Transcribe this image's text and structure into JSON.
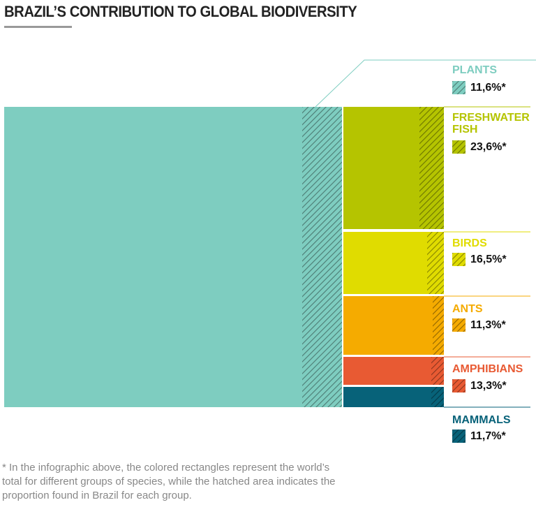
{
  "title": "BRAZIL’S CONTRIBUTION TO GLOBAL BIODIVERSITY",
  "footnote": "* In the infographic above, the colored rectangles represent the world’s total for different groups of species, while the hatched area indicates the proportion found in Brazil for each group.",
  "chart_data": {
    "type": "treemap",
    "title": "BRAZIL’S CONTRIBUTION TO GLOBAL BIODIVERSITY",
    "series": [
      {
        "name": "PLANTS",
        "brazil_share_label": "11,6%*",
        "brazil_share": 11.6,
        "color": "#7ecdc0"
      },
      {
        "name": "FRESHWATER FISH",
        "brazil_share_label": "23,6%*",
        "brazil_share": 23.6,
        "color": "#b5c400"
      },
      {
        "name": "BIRDS",
        "brazil_share_label": "16,5%*",
        "brazil_share": 16.5,
        "color": "#e0dc00"
      },
      {
        "name": "ANTS",
        "brazil_share_label": "11,3%*",
        "brazil_share": 11.3,
        "color": "#f5ab00"
      },
      {
        "name": "AMPHIBIANS",
        "brazil_share_label": "13,3%*",
        "brazil_share": 13.3,
        "color": "#e85a33"
      },
      {
        "name": "MAMMALS",
        "brazil_share_label": "11,7%*",
        "brazil_share": 11.7,
        "color": "#076279"
      }
    ]
  }
}
